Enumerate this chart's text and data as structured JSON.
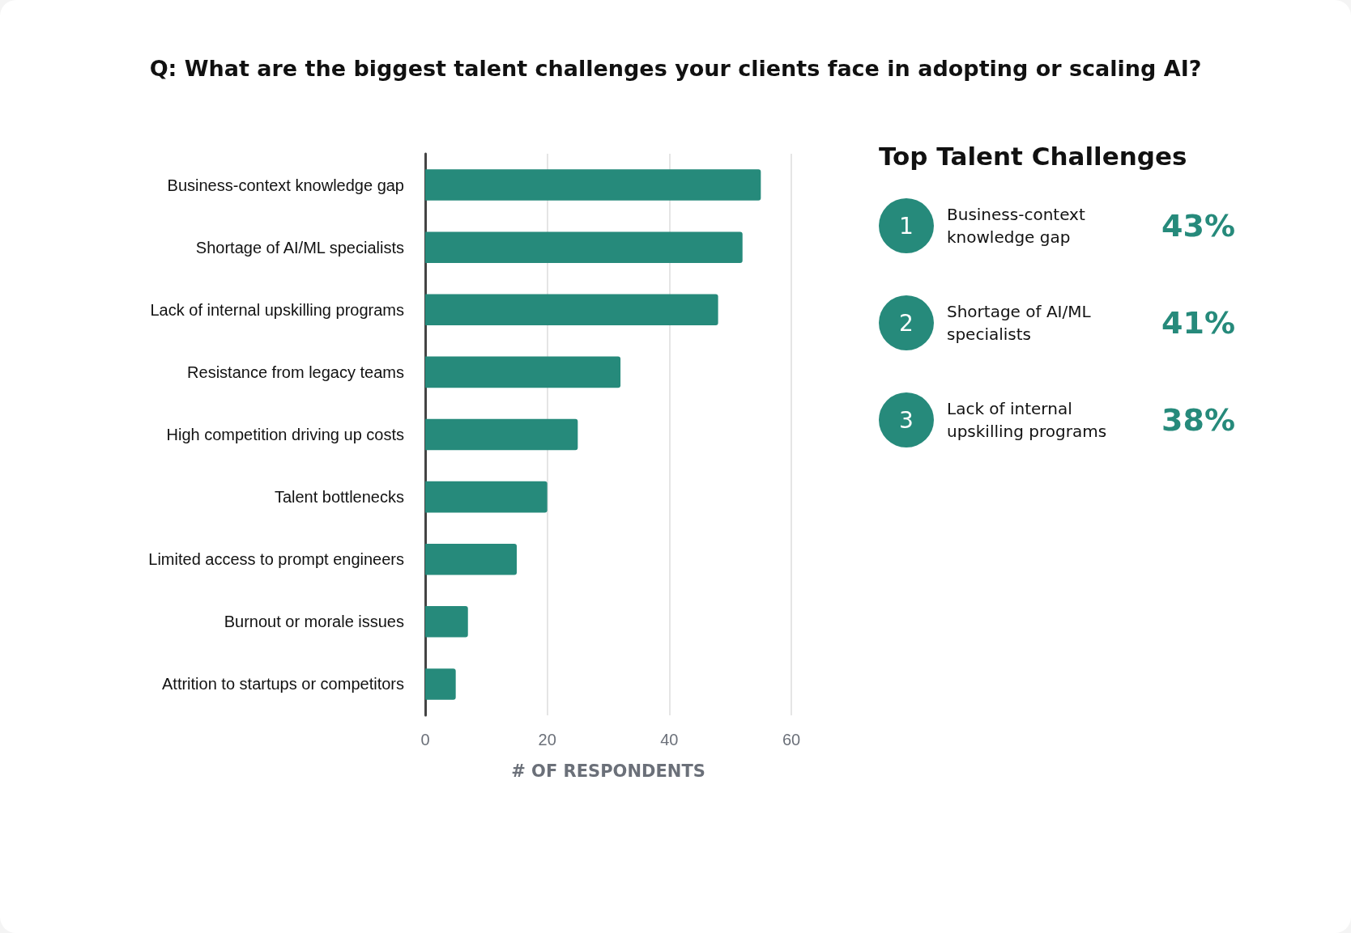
{
  "chart_data": [
    {
      "type": "bar",
      "orientation": "horizontal",
      "title": "Q: What are the biggest talent challenges your clients face in adopting or scaling AI?",
      "xlabel": "# OF RESPONDENTS",
      "categories": [
        "Business-context knowledge gap",
        "Shortage of AI/ML specialists",
        "Lack of internal upskilling programs",
        "Resistance from legacy teams",
        "High competition driving up costs",
        "Talent bottlenecks",
        "Limited access to prompt engineers",
        "Burnout or morale issues",
        "Attrition to startups or competitors"
      ],
      "values": [
        55,
        52,
        48,
        32,
        25,
        20,
        15,
        7,
        5
      ],
      "color": "#268a7b",
      "xlim": [
        0,
        60
      ],
      "xticks": [
        0,
        20,
        40,
        60
      ],
      "grid": "x"
    },
    {
      "type": "other",
      "title": "Top Talent Challenges",
      "categories": [
        "Business-context knowledge gap",
        "Shortage of AI/ML specialists",
        "Lack of internal upskilling programs"
      ],
      "annotations": [
        "1",
        "2",
        "3"
      ],
      "value_labels": [
        "43%",
        "41%",
        "38%"
      ],
      "color": "#268a7b"
    }
  ]
}
